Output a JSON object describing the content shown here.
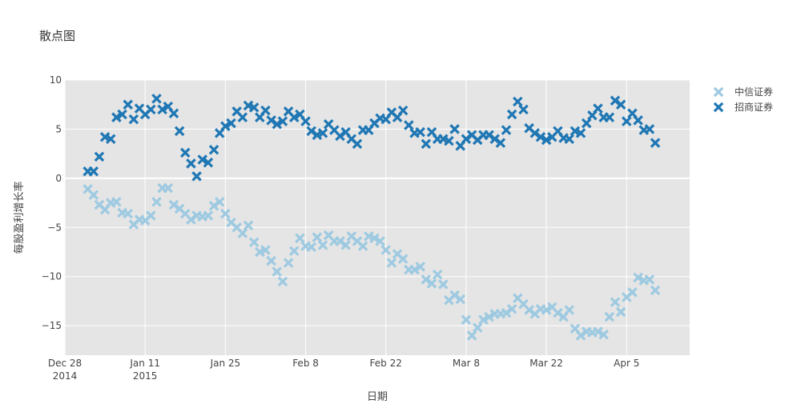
{
  "chart_data": {
    "type": "scatter",
    "title": "散点图",
    "xlabel": "日期",
    "ylabel": "每股盈利增长率",
    "x_ticks": [
      {
        "date": "2014-12-28",
        "label": "Dec 28",
        "sub": "2014"
      },
      {
        "date": "2015-01-11",
        "label": "Jan 11",
        "sub": "2015"
      },
      {
        "date": "2015-01-25",
        "label": "Jan 25",
        "sub": ""
      },
      {
        "date": "2015-02-08",
        "label": "Feb 8",
        "sub": ""
      },
      {
        "date": "2015-02-22",
        "label": "Feb 22",
        "sub": ""
      },
      {
        "date": "2015-03-08",
        "label": "Mar 8",
        "sub": ""
      },
      {
        "date": "2015-03-22",
        "label": "Mar 22",
        "sub": ""
      },
      {
        "date": "2015-04-05",
        "label": "Apr 5",
        "sub": ""
      }
    ],
    "xlim": [
      "2014-12-28",
      "2015-04-16"
    ],
    "ylim": [
      -18,
      10
    ],
    "y_ticks": [
      {
        "value": 10,
        "label": "10"
      },
      {
        "value": 5,
        "label": "5"
      },
      {
        "value": 0,
        "label": "0"
      },
      {
        "value": -5,
        "label": "−5"
      },
      {
        "value": -10,
        "label": "−10"
      },
      {
        "value": -15,
        "label": "−15"
      }
    ],
    "grid": true,
    "legend_position": "top-right",
    "marker": "x",
    "series": [
      {
        "name": "中信证券",
        "color": "#9ecae1",
        "x": [
          "2015-01-01",
          "2015-01-02",
          "2015-01-03",
          "2015-01-04",
          "2015-01-05",
          "2015-01-06",
          "2015-01-07",
          "2015-01-08",
          "2015-01-09",
          "2015-01-10",
          "2015-01-11",
          "2015-01-12",
          "2015-01-13",
          "2015-01-14",
          "2015-01-15",
          "2015-01-16",
          "2015-01-17",
          "2015-01-18",
          "2015-01-19",
          "2015-01-20",
          "2015-01-21",
          "2015-01-22",
          "2015-01-23",
          "2015-01-24",
          "2015-01-25",
          "2015-01-26",
          "2015-01-27",
          "2015-01-28",
          "2015-01-29",
          "2015-01-30",
          "2015-01-31",
          "2015-02-01",
          "2015-02-02",
          "2015-02-03",
          "2015-02-04",
          "2015-02-05",
          "2015-02-06",
          "2015-02-07",
          "2015-02-08",
          "2015-02-09",
          "2015-02-10",
          "2015-02-11",
          "2015-02-12",
          "2015-02-13",
          "2015-02-14",
          "2015-02-15",
          "2015-02-16",
          "2015-02-17",
          "2015-02-18",
          "2015-02-19",
          "2015-02-20",
          "2015-02-21",
          "2015-02-22",
          "2015-02-23",
          "2015-02-24",
          "2015-02-25",
          "2015-02-26",
          "2015-02-27",
          "2015-02-28",
          "2015-03-01",
          "2015-03-02",
          "2015-03-03",
          "2015-03-04",
          "2015-03-05",
          "2015-03-06",
          "2015-03-07",
          "2015-03-08",
          "2015-03-09",
          "2015-03-10",
          "2015-03-11",
          "2015-03-12",
          "2015-03-13",
          "2015-03-14",
          "2015-03-15",
          "2015-03-16",
          "2015-03-17",
          "2015-03-18",
          "2015-03-19",
          "2015-03-20",
          "2015-03-21",
          "2015-03-22",
          "2015-03-23",
          "2015-03-24",
          "2015-03-25",
          "2015-03-26",
          "2015-03-27",
          "2015-03-28",
          "2015-03-29",
          "2015-03-30",
          "2015-03-31",
          "2015-04-01",
          "2015-04-02",
          "2015-04-03",
          "2015-04-04",
          "2015-04-05",
          "2015-04-06",
          "2015-04-07",
          "2015-04-08",
          "2015-04-09",
          "2015-04-10"
        ],
        "y": [
          -1.1,
          -1.7,
          -2.7,
          -3.2,
          -2.5,
          -2.4,
          -3.5,
          -3.6,
          -4.7,
          -4.2,
          -4.3,
          -3.8,
          -2.4,
          -1.0,
          -1.0,
          -2.7,
          -3.1,
          -3.6,
          -4.2,
          -3.8,
          -3.9,
          -3.8,
          -2.8,
          -2.4,
          -3.6,
          -4.5,
          -5.0,
          -5.6,
          -4.8,
          -6.5,
          -7.5,
          -7.3,
          -8.4,
          -9.5,
          -10.5,
          -8.6,
          -7.4,
          -6.1,
          -6.9,
          -7.0,
          -6.0,
          -6.8,
          -5.8,
          -6.4,
          -6.4,
          -6.8,
          -5.9,
          -6.4,
          -6.9,
          -5.9,
          -6.1,
          -6.4,
          -7.3,
          -8.6,
          -7.7,
          -8.2,
          -9.3,
          -9.3,
          -9.0,
          -10.3,
          -10.7,
          -9.8,
          -10.8,
          -12.4,
          -11.9,
          -12.3,
          -14.4,
          -16.0,
          -15.2,
          -14.4,
          -14.1,
          -13.8,
          -13.8,
          -13.7,
          -13.3,
          -12.2,
          -12.8,
          -13.4,
          -13.8,
          -13.3,
          -13.4,
          -13.1,
          -13.7,
          -14.1,
          -13.4,
          -15.3,
          -16.0,
          -15.6,
          -15.7,
          -15.6,
          -15.9,
          -14.1,
          -12.6,
          -13.6,
          -12.1,
          -11.6,
          -10.1,
          -10.4,
          -10.3,
          -11.4
        ]
      },
      {
        "name": "招商证券",
        "color": "#1f77b4",
        "x": [
          "2015-01-01",
          "2015-01-02",
          "2015-01-03",
          "2015-01-04",
          "2015-01-05",
          "2015-01-06",
          "2015-01-07",
          "2015-01-08",
          "2015-01-09",
          "2015-01-10",
          "2015-01-11",
          "2015-01-12",
          "2015-01-13",
          "2015-01-14",
          "2015-01-15",
          "2015-01-16",
          "2015-01-17",
          "2015-01-18",
          "2015-01-19",
          "2015-01-20",
          "2015-01-21",
          "2015-01-22",
          "2015-01-23",
          "2015-01-24",
          "2015-01-25",
          "2015-01-26",
          "2015-01-27",
          "2015-01-28",
          "2015-01-29",
          "2015-01-30",
          "2015-01-31",
          "2015-02-01",
          "2015-02-02",
          "2015-02-03",
          "2015-02-04",
          "2015-02-05",
          "2015-02-06",
          "2015-02-07",
          "2015-02-08",
          "2015-02-09",
          "2015-02-10",
          "2015-02-11",
          "2015-02-12",
          "2015-02-13",
          "2015-02-14",
          "2015-02-15",
          "2015-02-16",
          "2015-02-17",
          "2015-02-18",
          "2015-02-19",
          "2015-02-20",
          "2015-02-21",
          "2015-02-22",
          "2015-02-23",
          "2015-02-24",
          "2015-02-25",
          "2015-02-26",
          "2015-02-27",
          "2015-02-28",
          "2015-03-01",
          "2015-03-02",
          "2015-03-03",
          "2015-03-04",
          "2015-03-05",
          "2015-03-06",
          "2015-03-07",
          "2015-03-08",
          "2015-03-09",
          "2015-03-10",
          "2015-03-11",
          "2015-03-12",
          "2015-03-13",
          "2015-03-14",
          "2015-03-15",
          "2015-03-16",
          "2015-03-17",
          "2015-03-18",
          "2015-03-19",
          "2015-03-20",
          "2015-03-21",
          "2015-03-22",
          "2015-03-23",
          "2015-03-24",
          "2015-03-25",
          "2015-03-26",
          "2015-03-27",
          "2015-03-28",
          "2015-03-29",
          "2015-03-30",
          "2015-03-31",
          "2015-04-01",
          "2015-04-02",
          "2015-04-03",
          "2015-04-04",
          "2015-04-05",
          "2015-04-06",
          "2015-04-07",
          "2015-04-08",
          "2015-04-09",
          "2015-04-10"
        ],
        "y": [
          0.7,
          0.7,
          2.2,
          4.2,
          4.0,
          6.2,
          6.5,
          7.5,
          6.0,
          7.1,
          6.5,
          7.0,
          8.1,
          7.0,
          7.3,
          6.6,
          4.8,
          2.6,
          1.5,
          0.2,
          1.9,
          1.6,
          2.9,
          4.6,
          5.3,
          5.6,
          6.8,
          6.2,
          7.4,
          7.2,
          6.2,
          6.9,
          5.9,
          5.5,
          5.8,
          6.8,
          6.2,
          6.5,
          5.8,
          4.8,
          4.4,
          4.6,
          5.5,
          4.9,
          4.3,
          4.7,
          4.0,
          3.5,
          4.9,
          4.9,
          5.6,
          6.1,
          6.0,
          6.7,
          6.2,
          6.9,
          5.4,
          4.6,
          4.7,
          3.5,
          4.7,
          4.0,
          4.0,
          3.8,
          5.0,
          3.3,
          4.0,
          4.4,
          3.9,
          4.4,
          4.4,
          4.0,
          3.6,
          4.9,
          6.5,
          7.8,
          7.0,
          5.1,
          4.6,
          4.2,
          3.9,
          4.2,
          4.8,
          4.1,
          4.0,
          4.8,
          4.6,
          5.6,
          6.4,
          7.1,
          6.2,
          6.2,
          7.9,
          7.5,
          5.8,
          6.6,
          5.9,
          4.9,
          5.0,
          3.6
        ]
      }
    ]
  }
}
